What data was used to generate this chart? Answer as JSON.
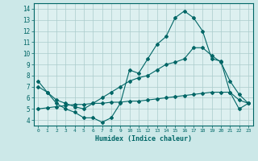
{
  "title": "",
  "xlabel": "Humidex (Indice chaleur)",
  "bg_color": "#cce8e8",
  "grid_color": "#aacccc",
  "plot_bg_color": "#ddf0f0",
  "line_color": "#006666",
  "xlim": [
    -0.5,
    23.5
  ],
  "ylim": [
    3.5,
    14.5
  ],
  "xticks": [
    0,
    1,
    2,
    3,
    4,
    5,
    6,
    7,
    8,
    9,
    10,
    11,
    12,
    13,
    14,
    15,
    16,
    17,
    18,
    19,
    20,
    21,
    22,
    23
  ],
  "yticks": [
    4,
    5,
    6,
    7,
    8,
    9,
    10,
    11,
    12,
    13,
    14
  ],
  "line1_x": [
    0,
    1,
    2,
    3,
    4,
    5,
    6,
    7,
    8,
    9,
    10,
    11,
    12,
    13,
    14,
    15,
    16,
    17,
    18,
    19,
    20,
    21,
    22,
    23
  ],
  "line1_y": [
    7.5,
    6.5,
    5.5,
    5.0,
    4.7,
    4.2,
    4.2,
    3.8,
    4.2,
    5.5,
    8.5,
    8.2,
    9.5,
    10.8,
    11.5,
    13.2,
    13.8,
    13.2,
    12.0,
    9.5,
    9.3,
    6.5,
    5.0,
    5.5
  ],
  "line2_x": [
    0,
    1,
    2,
    3,
    4,
    5,
    6,
    7,
    8,
    9,
    10,
    11,
    12,
    13,
    14,
    15,
    16,
    17,
    18,
    19,
    20,
    21,
    22,
    23
  ],
  "line2_y": [
    5.0,
    5.1,
    5.2,
    5.3,
    5.4,
    5.4,
    5.5,
    5.5,
    5.6,
    5.6,
    5.7,
    5.7,
    5.8,
    5.9,
    6.0,
    6.1,
    6.2,
    6.3,
    6.4,
    6.5,
    6.5,
    6.5,
    5.8,
    5.5
  ],
  "line3_x": [
    0,
    1,
    2,
    3,
    4,
    5,
    6,
    7,
    8,
    9,
    10,
    11,
    12,
    13,
    14,
    15,
    16,
    17,
    18,
    19,
    20,
    21,
    22,
    23
  ],
  "line3_y": [
    7.0,
    6.5,
    5.8,
    5.5,
    5.2,
    5.0,
    5.5,
    6.0,
    6.5,
    7.0,
    7.5,
    7.8,
    8.0,
    8.5,
    9.0,
    9.2,
    9.5,
    10.5,
    10.5,
    9.8,
    9.2,
    7.5,
    6.3,
    5.5
  ]
}
